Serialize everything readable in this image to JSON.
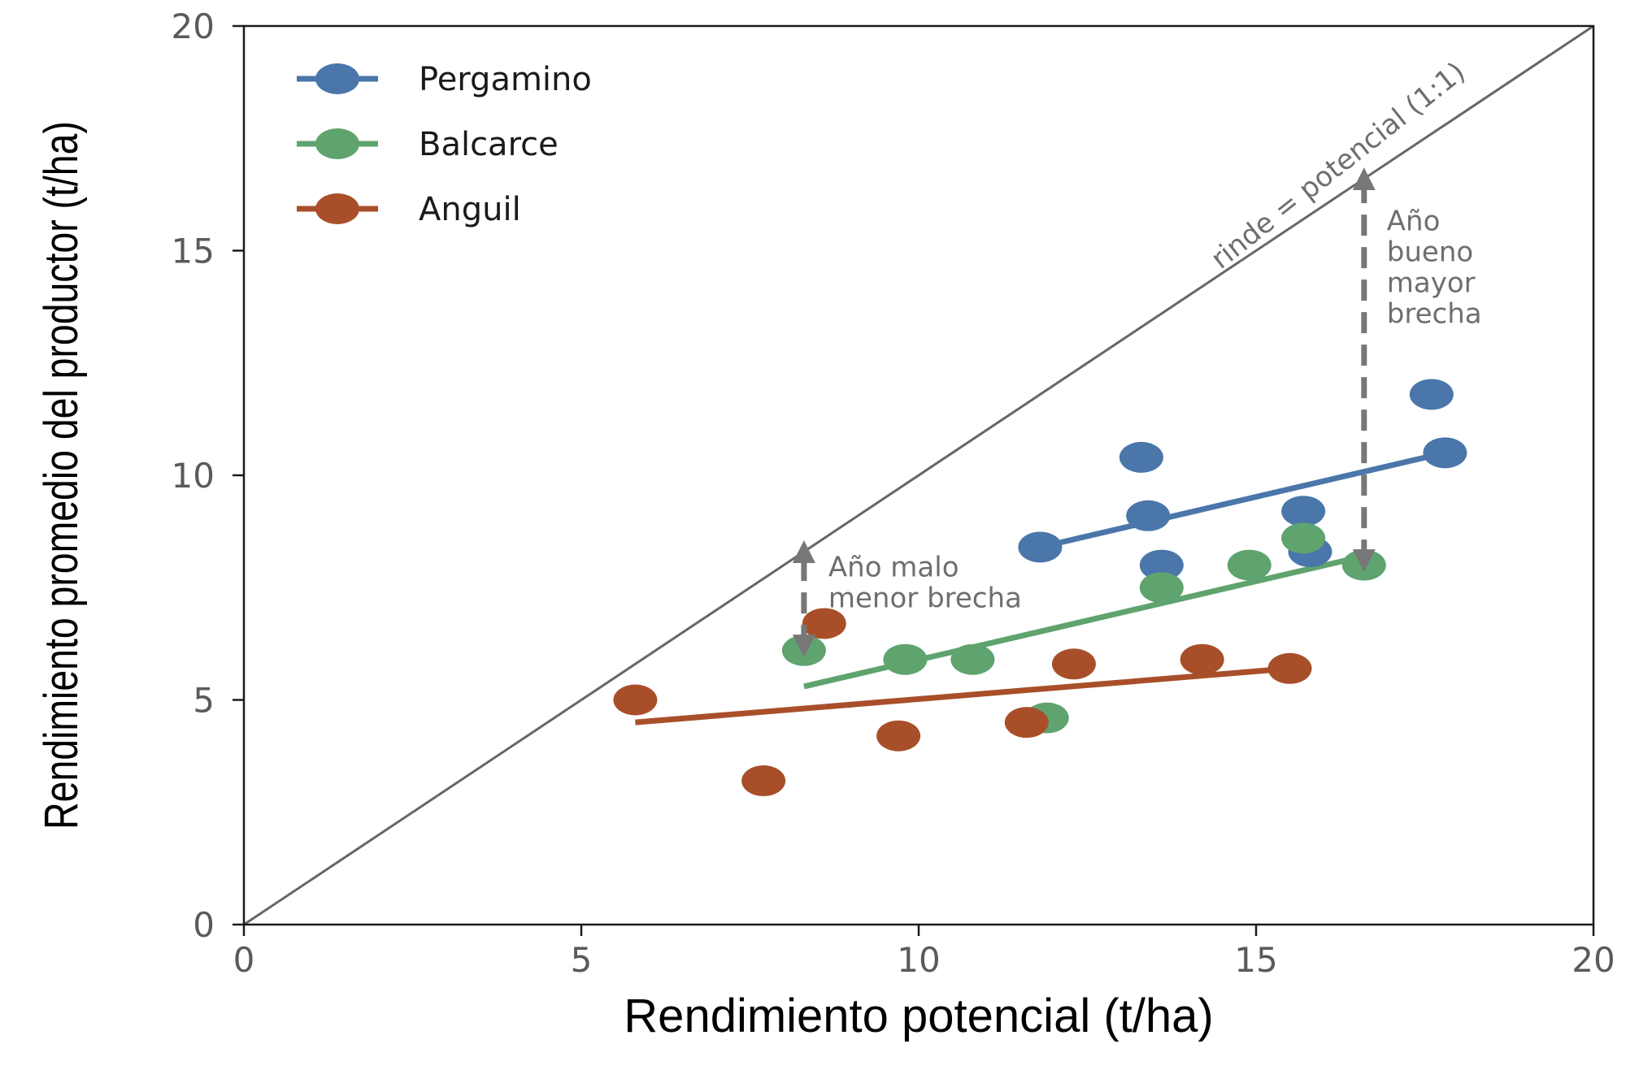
{
  "chart_data": {
    "type": "scatter",
    "xlabel": "Rendimiento potencial (t/ha)",
    "ylabel": "Rendimiento promedio del productor (t/ha)",
    "xlim": [
      0,
      20
    ],
    "ylim": [
      0,
      20
    ],
    "xticks": [
      "0",
      "5",
      "10",
      "15",
      "20"
    ],
    "yticks": [
      "0",
      "5",
      "10",
      "15",
      "20"
    ],
    "grid": false,
    "legend_position": "top-left",
    "reference_line": {
      "label": "rinde = potencial (1:1)",
      "from": [
        0,
        0
      ],
      "to": [
        20,
        20
      ],
      "color": "#666666"
    },
    "series": [
      {
        "name": "Pergamino",
        "color": "#4a76aa",
        "points": [
          [
            11.8,
            8.4
          ],
          [
            13.3,
            10.4
          ],
          [
            13.4,
            9.1
          ],
          [
            13.6,
            8.0
          ],
          [
            15.7,
            9.2
          ],
          [
            15.8,
            8.3
          ],
          [
            17.6,
            11.8
          ],
          [
            17.8,
            10.5
          ]
        ],
        "trend": [
          [
            11.8,
            8.4
          ],
          [
            17.8,
            10.5
          ]
        ]
      },
      {
        "name": "Balcarce",
        "color": "#5fa36e",
        "points": [
          [
            8.3,
            6.1
          ],
          [
            9.8,
            5.9
          ],
          [
            10.8,
            5.9
          ],
          [
            11.9,
            4.6
          ],
          [
            13.6,
            7.5
          ],
          [
            14.9,
            8.0
          ],
          [
            15.7,
            8.6
          ],
          [
            16.6,
            8.0
          ]
        ],
        "trend": [
          [
            8.3,
            5.3
          ],
          [
            16.6,
            8.2
          ]
        ]
      },
      {
        "name": "Anguil",
        "color": "#a84f2a",
        "points": [
          [
            5.8,
            5.0
          ],
          [
            7.7,
            3.2
          ],
          [
            8.6,
            6.7
          ],
          [
            9.7,
            4.2
          ],
          [
            11.6,
            4.5
          ],
          [
            12.3,
            5.8
          ],
          [
            14.2,
            5.9
          ],
          [
            15.5,
            5.7
          ]
        ],
        "trend": [
          [
            5.8,
            4.5
          ],
          [
            15.5,
            5.7
          ]
        ]
      }
    ],
    "annotations": [
      {
        "id": "bad-year",
        "lines": [
          "Año malo",
          "menor brecha"
        ],
        "arrow_x": 8.3,
        "arrow_from": 6.2,
        "arrow_to": 8.3
      },
      {
        "id": "good-year",
        "lines": [
          "Año",
          "bueno",
          "mayor",
          "brecha"
        ],
        "arrow_x": 16.6,
        "arrow_from": 8.1,
        "arrow_to": 16.6
      }
    ]
  }
}
